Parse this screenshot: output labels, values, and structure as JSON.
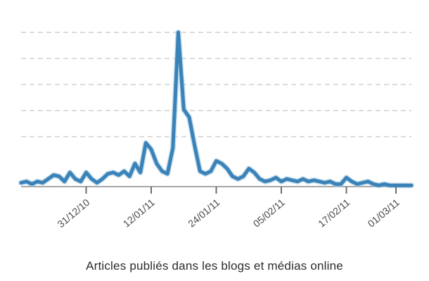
{
  "caption": "Articles publiés dans les blogs et médias online",
  "chart_data": {
    "type": "line",
    "title": "",
    "xlabel": "Articles publiés dans les blogs et médias online",
    "ylabel": "",
    "grid": true,
    "tick_labels": [
      "31/12/10",
      "12/01/11",
      "24/01/11",
      "05/02/11",
      "17/02/11",
      "01/03/11"
    ],
    "ylim": [
      0,
      6
    ],
    "series": [
      {
        "color": "#3a82b8",
        "x": [
          0,
          1,
          2,
          3,
          4,
          5,
          6,
          7,
          8,
          9,
          10,
          11,
          12,
          13,
          14,
          15,
          16,
          17,
          18,
          19,
          20,
          21,
          22,
          23,
          24,
          25,
          26,
          27,
          28,
          29,
          30,
          31,
          32,
          33,
          34,
          35,
          36,
          37,
          38,
          39,
          40,
          41,
          42,
          43,
          44,
          45,
          46,
          47,
          48,
          49,
          50,
          51,
          52,
          53,
          54,
          55,
          56,
          57,
          58,
          59,
          60,
          61,
          62,
          63,
          64,
          65,
          66,
          67,
          68,
          69,
          70,
          71,
          72
        ],
        "values": [
          0.15,
          0.2,
          0.1,
          0.2,
          0.15,
          0.3,
          0.45,
          0.4,
          0.2,
          0.55,
          0.3,
          0.2,
          0.55,
          0.3,
          0.15,
          0.3,
          0.5,
          0.55,
          0.45,
          0.6,
          0.4,
          0.9,
          0.55,
          1.7,
          1.45,
          0.9,
          0.6,
          0.5,
          1.5,
          6.0,
          3.0,
          2.7,
          1.6,
          0.6,
          0.5,
          0.6,
          1.0,
          0.9,
          0.7,
          0.4,
          0.3,
          0.4,
          0.7,
          0.55,
          0.3,
          0.2,
          0.25,
          0.35,
          0.2,
          0.3,
          0.25,
          0.2,
          0.3,
          0.2,
          0.25,
          0.2,
          0.15,
          0.2,
          0.1,
          0.1,
          0.35,
          0.2,
          0.1,
          0.15,
          0.2,
          0.1,
          0.05,
          0.1,
          0.05,
          0.05,
          0.05,
          0.05,
          0.05
        ]
      }
    ]
  }
}
